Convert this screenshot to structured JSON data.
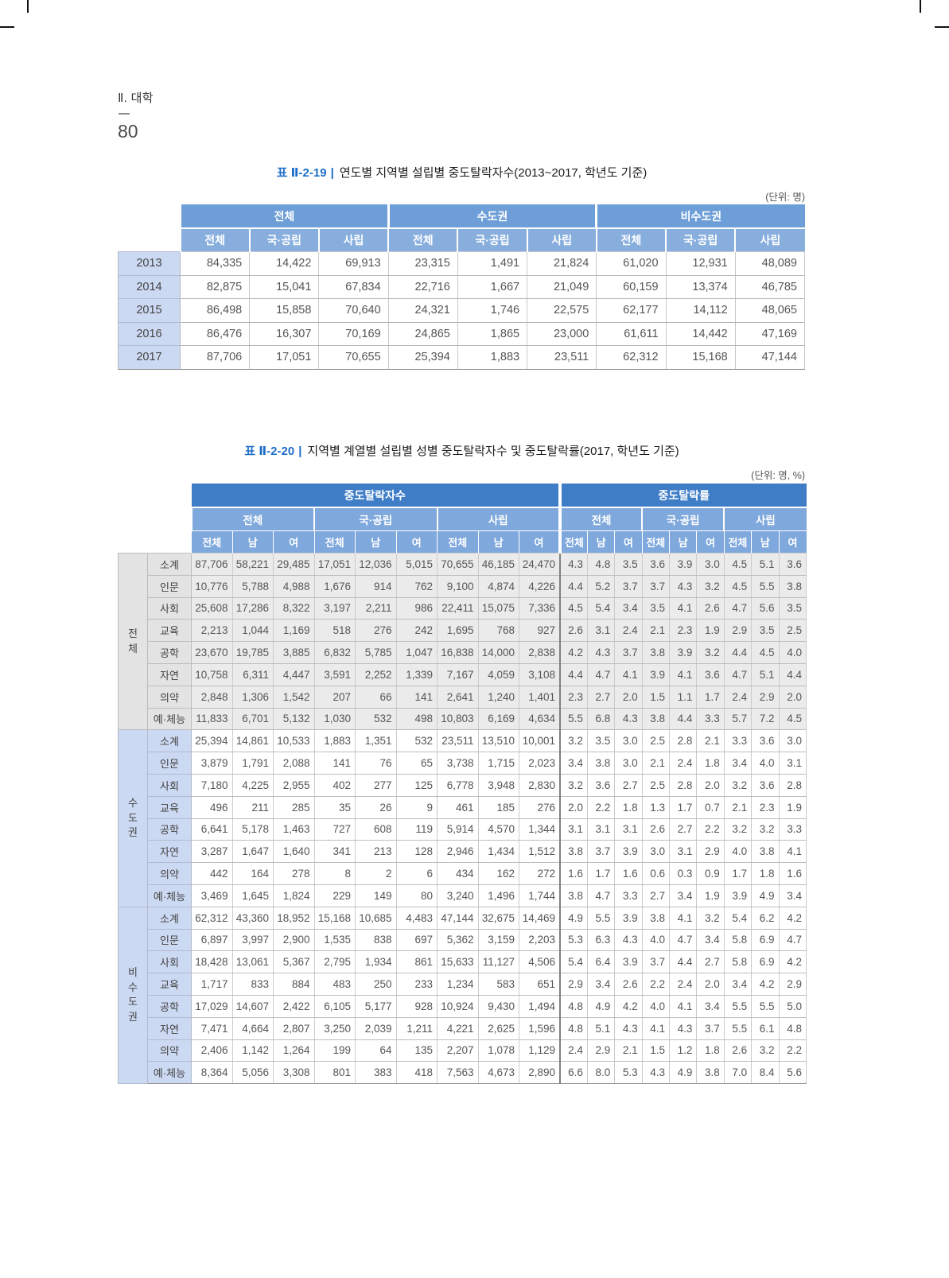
{
  "page": {
    "section_label": "Ⅱ. 대학",
    "page_number": "80"
  },
  "colors": {
    "accent_blue": "#1e6ec8",
    "table1_header_row1": "#6e9ed7",
    "table1_header_row2": "#88aede",
    "table2_header_row1": "#3f7ec7",
    "table2_header_rows23": "#7fa8dc",
    "label_cell_blue": "#ccd9f2",
    "total_block_gray": "#ebebeb"
  },
  "table1": {
    "id_label": "표 Ⅱ-2-19",
    "divider": "|",
    "title": "연도별 지역별 설립별 중도탈락자수(2013~2017, 학년도 기준)",
    "unit_label": "(단위: 명)",
    "column_groups": [
      "전체",
      "수도권",
      "비수도권"
    ],
    "sub_columns": [
      "전체",
      "국·공립",
      "사립"
    ],
    "rows": [
      {
        "year": "2013",
        "values": [
          "84,335",
          "14,422",
          "69,913",
          "23,315",
          "1,491",
          "21,824",
          "61,020",
          "12,931",
          "48,089"
        ]
      },
      {
        "year": "2014",
        "values": [
          "82,875",
          "15,041",
          "67,834",
          "22,716",
          "1,667",
          "21,049",
          "60,159",
          "13,374",
          "46,785"
        ]
      },
      {
        "year": "2015",
        "values": [
          "86,498",
          "15,858",
          "70,640",
          "24,321",
          "1,746",
          "22,575",
          "62,177",
          "14,112",
          "48,065"
        ]
      },
      {
        "year": "2016",
        "values": [
          "86,476",
          "16,307",
          "70,169",
          "24,865",
          "1,865",
          "23,000",
          "61,611",
          "14,442",
          "47,169"
        ]
      },
      {
        "year": "2017",
        "values": [
          "87,706",
          "17,051",
          "70,655",
          "25,394",
          "1,883",
          "23,511",
          "62,312",
          "15,168",
          "47,144"
        ]
      }
    ]
  },
  "table2": {
    "id_label": "표 Ⅱ-2-20",
    "divider": "|",
    "title": "지역별 계열별 설립별 성별 중도탈락자수 및 중도탈락률(2017, 학년도 기준)",
    "unit_label": "(단위: 명, %)",
    "sections": [
      "중도탈락자수",
      "중도탈락률"
    ],
    "column_groups": [
      "전체",
      "국·공립",
      "사립"
    ],
    "sub_columns": [
      "전체",
      "남",
      "여"
    ],
    "row_blocks": [
      {
        "region": "전체",
        "rows": [
          {
            "label": "소계",
            "counts": [
              "87,706",
              "58,221",
              "29,485",
              "17,051",
              "12,036",
              "5,015",
              "70,655",
              "46,185",
              "24,470"
            ],
            "rates": [
              "4.3",
              "4.8",
              "3.5",
              "3.6",
              "3.9",
              "3.0",
              "4.5",
              "5.1",
              "3.6"
            ]
          },
          {
            "label": "인문",
            "counts": [
              "10,776",
              "5,788",
              "4,988",
              "1,676",
              "914",
              "762",
              "9,100",
              "4,874",
              "4,226"
            ],
            "rates": [
              "4.4",
              "5.2",
              "3.7",
              "3.7",
              "4.3",
              "3.2",
              "4.5",
              "5.5",
              "3.8"
            ]
          },
          {
            "label": "사회",
            "counts": [
              "25,608",
              "17,286",
              "8,322",
              "3,197",
              "2,211",
              "986",
              "22,411",
              "15,075",
              "7,336"
            ],
            "rates": [
              "4.5",
              "5.4",
              "3.4",
              "3.5",
              "4.1",
              "2.6",
              "4.7",
              "5.6",
              "3.5"
            ]
          },
          {
            "label": "교육",
            "counts": [
              "2,213",
              "1,044",
              "1,169",
              "518",
              "276",
              "242",
              "1,695",
              "768",
              "927"
            ],
            "rates": [
              "2.6",
              "3.1",
              "2.4",
              "2.1",
              "2.3",
              "1.9",
              "2.9",
              "3.5",
              "2.5"
            ]
          },
          {
            "label": "공학",
            "counts": [
              "23,670",
              "19,785",
              "3,885",
              "6,832",
              "5,785",
              "1,047",
              "16,838",
              "14,000",
              "2,838"
            ],
            "rates": [
              "4.2",
              "4.3",
              "3.7",
              "3.8",
              "3.9",
              "3.2",
              "4.4",
              "4.5",
              "4.0"
            ]
          },
          {
            "label": "자연",
            "counts": [
              "10,758",
              "6,311",
              "4,447",
              "3,591",
              "2,252",
              "1,339",
              "7,167",
              "4,059",
              "3,108"
            ],
            "rates": [
              "4.4",
              "4.7",
              "4.1",
              "3.9",
              "4.1",
              "3.6",
              "4.7",
              "5.1",
              "4.4"
            ]
          },
          {
            "label": "의약",
            "counts": [
              "2,848",
              "1,306",
              "1,542",
              "207",
              "66",
              "141",
              "2,641",
              "1,240",
              "1,401"
            ],
            "rates": [
              "2.3",
              "2.7",
              "2.0",
              "1.5",
              "1.1",
              "1.7",
              "2.4",
              "2.9",
              "2.0"
            ]
          },
          {
            "label": "예·체능",
            "counts": [
              "11,833",
              "6,701",
              "5,132",
              "1,030",
              "532",
              "498",
              "10,803",
              "6,169",
              "4,634"
            ],
            "rates": [
              "5.5",
              "6.8",
              "4.3",
              "3.8",
              "4.4",
              "3.3",
              "5.7",
              "7.2",
              "4.5"
            ]
          }
        ]
      },
      {
        "region": "수도권",
        "rows": [
          {
            "label": "소계",
            "counts": [
              "25,394",
              "14,861",
              "10,533",
              "1,883",
              "1,351",
              "532",
              "23,511",
              "13,510",
              "10,001"
            ],
            "rates": [
              "3.2",
              "3.5",
              "3.0",
              "2.5",
              "2.8",
              "2.1",
              "3.3",
              "3.6",
              "3.0"
            ]
          },
          {
            "label": "인문",
            "counts": [
              "3,879",
              "1,791",
              "2,088",
              "141",
              "76",
              "65",
              "3,738",
              "1,715",
              "2,023"
            ],
            "rates": [
              "3.4",
              "3.8",
              "3.0",
              "2.1",
              "2.4",
              "1.8",
              "3.4",
              "4.0",
              "3.1"
            ]
          },
          {
            "label": "사회",
            "counts": [
              "7,180",
              "4,225",
              "2,955",
              "402",
              "277",
              "125",
              "6,778",
              "3,948",
              "2,830"
            ],
            "rates": [
              "3.2",
              "3.6",
              "2.7",
              "2.5",
              "2.8",
              "2.0",
              "3.2",
              "3.6",
              "2.8"
            ]
          },
          {
            "label": "교육",
            "counts": [
              "496",
              "211",
              "285",
              "35",
              "26",
              "9",
              "461",
              "185",
              "276"
            ],
            "rates": [
              "2.0",
              "2.2",
              "1.8",
              "1.3",
              "1.7",
              "0.7",
              "2.1",
              "2.3",
              "1.9"
            ]
          },
          {
            "label": "공학",
            "counts": [
              "6,641",
              "5,178",
              "1,463",
              "727",
              "608",
              "119",
              "5,914",
              "4,570",
              "1,344"
            ],
            "rates": [
              "3.1",
              "3.1",
              "3.1",
              "2.6",
              "2.7",
              "2.2",
              "3.2",
              "3.2",
              "3.3"
            ]
          },
          {
            "label": "자연",
            "counts": [
              "3,287",
              "1,647",
              "1,640",
              "341",
              "213",
              "128",
              "2,946",
              "1,434",
              "1,512"
            ],
            "rates": [
              "3.8",
              "3.7",
              "3.9",
              "3.0",
              "3.1",
              "2.9",
              "4.0",
              "3.8",
              "4.1"
            ]
          },
          {
            "label": "의약",
            "counts": [
              "442",
              "164",
              "278",
              "8",
              "2",
              "6",
              "434",
              "162",
              "272"
            ],
            "rates": [
              "1.6",
              "1.7",
              "1.6",
              "0.6",
              "0.3",
              "0.9",
              "1.7",
              "1.8",
              "1.6"
            ]
          },
          {
            "label": "예·체능",
            "counts": [
              "3,469",
              "1,645",
              "1,824",
              "229",
              "149",
              "80",
              "3,240",
              "1,496",
              "1,744"
            ],
            "rates": [
              "3.8",
              "4.7",
              "3.3",
              "2.7",
              "3.4",
              "1.9",
              "3.9",
              "4.9",
              "3.4"
            ]
          }
        ]
      },
      {
        "region": "비수도권",
        "rows": [
          {
            "label": "소계",
            "counts": [
              "62,312",
              "43,360",
              "18,952",
              "15,168",
              "10,685",
              "4,483",
              "47,144",
              "32,675",
              "14,469"
            ],
            "rates": [
              "4.9",
              "5.5",
              "3.9",
              "3.8",
              "4.1",
              "3.2",
              "5.4",
              "6.2",
              "4.2"
            ]
          },
          {
            "label": "인문",
            "counts": [
              "6,897",
              "3,997",
              "2,900",
              "1,535",
              "838",
              "697",
              "5,362",
              "3,159",
              "2,203"
            ],
            "rates": [
              "5.3",
              "6.3",
              "4.3",
              "4.0",
              "4.7",
              "3.4",
              "5.8",
              "6.9",
              "4.7"
            ]
          },
          {
            "label": "사회",
            "counts": [
              "18,428",
              "13,061",
              "5,367",
              "2,795",
              "1,934",
              "861",
              "15,633",
              "11,127",
              "4,506"
            ],
            "rates": [
              "5.4",
              "6.4",
              "3.9",
              "3.7",
              "4.4",
              "2.7",
              "5.8",
              "6.9",
              "4.2"
            ]
          },
          {
            "label": "교육",
            "counts": [
              "1,717",
              "833",
              "884",
              "483",
              "250",
              "233",
              "1,234",
              "583",
              "651"
            ],
            "rates": [
              "2.9",
              "3.4",
              "2.6",
              "2.2",
              "2.4",
              "2.0",
              "3.4",
              "4.2",
              "2.9"
            ]
          },
          {
            "label": "공학",
            "counts": [
              "17,029",
              "14,607",
              "2,422",
              "6,105",
              "5,177",
              "928",
              "10,924",
              "9,430",
              "1,494"
            ],
            "rates": [
              "4.8",
              "4.9",
              "4.2",
              "4.0",
              "4.1",
              "3.4",
              "5.5",
              "5.5",
              "5.0"
            ]
          },
          {
            "label": "자연",
            "counts": [
              "7,471",
              "4,664",
              "2,807",
              "3,250",
              "2,039",
              "1,211",
              "4,221",
              "2,625",
              "1,596"
            ],
            "rates": [
              "4.8",
              "5.1",
              "4.3",
              "4.1",
              "4.3",
              "3.7",
              "5.5",
              "6.1",
              "4.8"
            ]
          },
          {
            "label": "의약",
            "counts": [
              "2,406",
              "1,142",
              "1,264",
              "199",
              "64",
              "135",
              "2,207",
              "1,078",
              "1,129"
            ],
            "rates": [
              "2.4",
              "2.9",
              "2.1",
              "1.5",
              "1.2",
              "1.8",
              "2.6",
              "3.2",
              "2.2"
            ]
          },
          {
            "label": "예·체능",
            "counts": [
              "8,364",
              "5,056",
              "3,308",
              "801",
              "383",
              "418",
              "7,563",
              "4,673",
              "2,890"
            ],
            "rates": [
              "6.6",
              "8.0",
              "5.3",
              "4.3",
              "4.9",
              "3.8",
              "7.0",
              "8.4",
              "5.6"
            ]
          }
        ]
      }
    ]
  }
}
